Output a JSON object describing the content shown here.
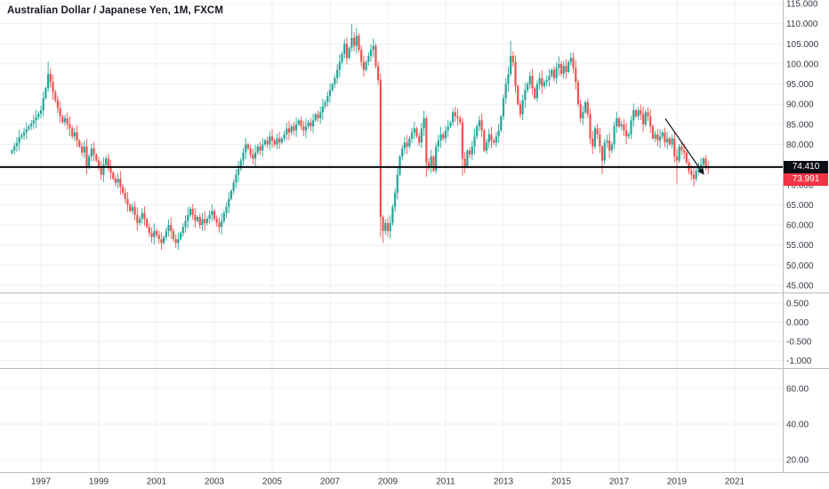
{
  "title": {
    "text": "Australian Dollar / Japanese Yen, 1M, FXCM"
  },
  "price_axis": {
    "main_ticks": [
      "115.000",
      "110.000",
      "105.000",
      "100.000",
      "95.000",
      "90.000",
      "85.000",
      "80.000",
      "75.000",
      "70.000",
      "65.000",
      "60.000",
      "55.000",
      "50.000",
      "45.000"
    ],
    "pane2_ticks": [
      "0.500",
      "0.000",
      "-0.500",
      "-1.000"
    ],
    "pane3_ticks": [
      "60.00",
      "40.00",
      "20.00"
    ],
    "line_badge": "74.410",
    "last_badge": "73.991"
  },
  "time_axis": {
    "years": [
      "1997",
      "1999",
      "2001",
      "2003",
      "2005",
      "2007",
      "2009",
      "2011",
      "2013",
      "2015",
      "2017",
      "2019",
      "2021"
    ]
  },
  "colors": {
    "background": "#ffffff",
    "up": "#26a69a",
    "down": "#ef5350",
    "grid": "#edeff2",
    "separator": "#b8bbc2",
    "axis_text": "#363a45",
    "price_line": "#07090d",
    "line_badge_bg": "#0c0e15",
    "last_badge_bg": "#f23645",
    "arrow": "#14161c"
  },
  "chart_data": {
    "type": "candlestick",
    "symbol": "Australian Dollar / Japanese Yen",
    "interval": "1M",
    "exchange": "FXCM",
    "title": "Australian Dollar / Japanese Yen, 1M, FXCM",
    "x_range": [
      "1996-01",
      "2020-02"
    ],
    "main_ylim": [
      45,
      115
    ],
    "xtick_years": [
      1997,
      1999,
      2001,
      2003,
      2005,
      2007,
      2009,
      2011,
      2013,
      2015,
      2017,
      2019,
      2021
    ],
    "horizontal_line": 74.41,
    "last_price": 73.991,
    "closes": [
      78.5,
      79.6,
      80.4,
      81.8,
      82.3,
      83.0,
      83.8,
      84.5,
      85.2,
      86.0,
      86.8,
      87.6,
      88.5,
      91.5,
      94.0,
      97.5,
      95.5,
      93.0,
      91.0,
      89.0,
      87.0,
      85.5,
      86.5,
      85.0,
      84.0,
      82.0,
      83.0,
      81.0,
      79.5,
      78.0,
      79.5,
      74.5,
      77.0,
      79.0,
      77.5,
      76.0,
      74.5,
      72.5,
      75.0,
      76.5,
      74.5,
      73.0,
      71.5,
      70.5,
      71.5,
      69.5,
      68.0,
      66.5,
      65.0,
      63.5,
      64.5,
      62.5,
      60.5,
      61.5,
      63.0,
      61.5,
      59.5,
      58.0,
      57.0,
      58.5,
      57.5,
      56.5,
      55.5,
      57.0,
      58.5,
      60.0,
      58.5,
      56.5,
      55.5,
      56.5,
      58.0,
      59.5,
      61.0,
      62.5,
      64.0,
      62.5,
      61.0,
      62.0,
      60.0,
      61.5,
      60.5,
      61.5,
      62.5,
      63.5,
      61.5,
      60.5,
      59.5,
      61.0,
      63.0,
      64.5,
      66.5,
      68.5,
      70.5,
      72.5,
      74.0,
      76.0,
      78.0,
      80.0,
      79.0,
      77.5,
      76.5,
      78.0,
      79.5,
      78.5,
      80.0,
      81.0,
      80.0,
      82.0,
      81.0,
      80.0,
      81.5,
      80.5,
      81.5,
      82.5,
      84.0,
      83.0,
      84.5,
      83.5,
      85.0,
      86.0,
      84.5,
      83.5,
      84.5,
      85.5,
      84.5,
      86.0,
      87.5,
      86.5,
      88.0,
      89.5,
      90.5,
      92.0,
      93.5,
      95.0,
      96.5,
      98.5,
      100.5,
      102.5,
      105.0,
      101.5,
      104.0,
      106.5,
      104.5,
      107.0,
      103.5,
      100.5,
      98.5,
      100.5,
      102.0,
      103.5,
      104.5,
      99.5,
      96.0,
      62.0,
      58.5,
      60.5,
      58.5,
      60.5,
      64.5,
      68.0,
      72.5,
      77.0,
      79.0,
      80.5,
      79.5,
      81.5,
      83.0,
      84.0,
      82.0,
      80.5,
      84.0,
      86.5,
      75.5,
      74.5,
      77.0,
      73.5,
      79.5,
      81.0,
      82.5,
      81.5,
      83.5,
      84.5,
      85.5,
      88.0,
      87.0,
      86.5,
      85.5,
      76.5,
      74.5,
      78.5,
      77.5,
      79.5,
      82.0,
      84.5,
      86.0,
      83.5,
      78.5,
      80.5,
      82.5,
      81.0,
      80.5,
      82.0,
      83.5,
      87.0,
      91.5,
      95.0,
      97.5,
      102.0,
      100.5,
      94.5,
      90.0,
      87.5,
      91.0,
      93.5,
      95.0,
      97.0,
      94.0,
      91.5,
      95.0,
      96.5,
      94.5,
      95.5,
      96.0,
      97.0,
      98.5,
      96.5,
      99.0,
      100.0,
      97.5,
      99.5,
      98.0,
      100.5,
      101.5,
      99.0,
      95.5,
      90.0,
      86.5,
      88.0,
      90.5,
      87.5,
      81.5,
      79.5,
      84.0,
      82.5,
      79.5,
      76.0,
      80.5,
      81.0,
      78.5,
      80.0,
      84.5,
      86.5,
      84.5,
      85.0,
      83.5,
      82.0,
      82.5,
      86.0,
      88.5,
      87.0,
      88.5,
      87.5,
      85.0,
      88.0,
      87.0,
      84.5,
      81.5,
      82.5,
      81.0,
      82.0,
      83.0,
      80.5,
      81.5,
      80.0,
      81.5,
      77.0,
      76.0,
      79.5,
      78.5,
      78.0,
      75.5,
      73.5,
      72.5,
      71.5,
      73.5,
      74.5,
      75.0,
      76.5,
      74.5,
      73.991
    ],
    "extremes": {
      "15": {
        "high": 100.6
      },
      "141": {
        "high": 110.0
      },
      "153": {
        "low": 57.0
      },
      "154": {
        "low": 55.5
      },
      "172": {
        "low": 72.0
      },
      "187": {
        "low": 72.3
      },
      "207": {
        "high": 105.8
      },
      "232": {
        "high": 102.8
      },
      "245": {
        "low": 72.6
      },
      "276": {
        "low": 70.3
      }
    },
    "panes": [
      {
        "name": "indicator-pane-1",
        "ticks": [
          0.5,
          0.0,
          -0.5,
          -1.0
        ],
        "series": []
      },
      {
        "name": "indicator-pane-2",
        "ticks": [
          60,
          40,
          20
        ],
        "series": []
      }
    ],
    "drawing": {
      "type": "trend-arrow",
      "from": {
        "year": 2018.6,
        "price": 86.4
      },
      "to": {
        "year": 2019.93,
        "price": 72.6
      }
    }
  }
}
